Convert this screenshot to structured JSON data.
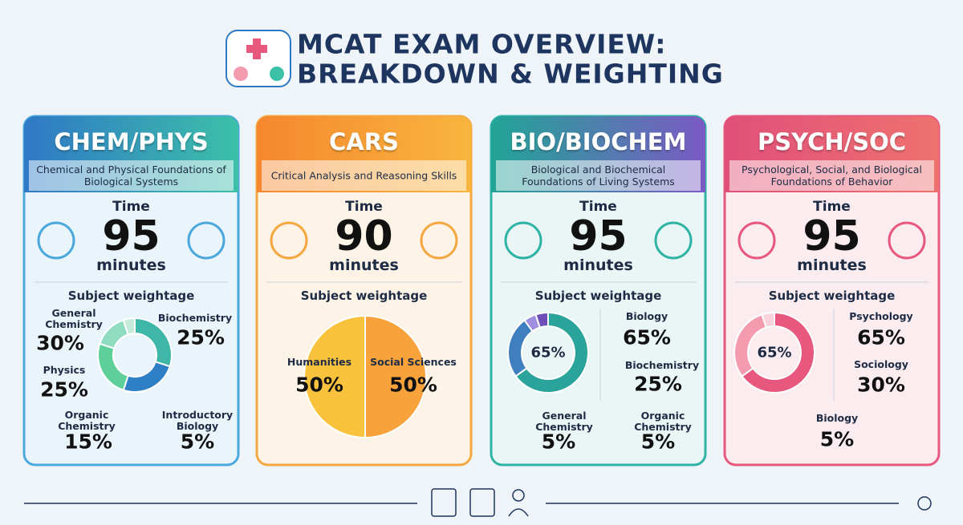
{
  "header": {
    "title_line1": "MCAT EXAM OVERVIEW:",
    "title_line2": "BREAKDOWN & WEIGHTING"
  },
  "cards": [
    {
      "title": "CHEM/PHYS",
      "subtitle": "Chemical and Physical Foundations of Biological Systems",
      "time_label": "Time",
      "time_value": 95,
      "time_unit": "minutes",
      "weightage_label": "Subject weightage",
      "subjects": [
        {
          "name": "General Chemistry",
          "value": 30,
          "value_label": "30%",
          "color": "#3fb7a8"
        },
        {
          "name": "Biochemistry",
          "value": 25,
          "value_label": "25%",
          "color": "#2f7fc6"
        },
        {
          "name": "Physics",
          "value": 25,
          "value_label": "25%",
          "color": "#5fcf9a"
        },
        {
          "name": "Organic Chemistry",
          "value": 15,
          "value_label": "15%",
          "color": "#8fdcc0"
        },
        {
          "name": "Introductory Biology",
          "value": 5,
          "value_label": "5%",
          "color": "#c4ecd9"
        }
      ]
    },
    {
      "title": "CARS",
      "subtitle": "Critical Analysis and Reasoning Skills",
      "time_label": "Time",
      "time_value": 90,
      "time_unit": "minutes",
      "weightage_label": "Subject weightage",
      "subjects": [
        {
          "name": "Humanities",
          "value": 50,
          "value_label": "50%",
          "color": "#f7a23b"
        },
        {
          "name": "Social Sciences",
          "value": 50,
          "value_label": "50%",
          "color": "#f9c23c"
        }
      ]
    },
    {
      "title": "BIO/BIOCHEM",
      "subtitle": "Biological and Biochemical Foundations of Living Systems",
      "time_label": "Time",
      "time_value": 95,
      "time_unit": "minutes",
      "weightage_label": "Subject weightage",
      "center_label": "65%",
      "subjects": [
        {
          "name": "Biology",
          "value": 65,
          "value_label": "65%",
          "color": "#2aa39b"
        },
        {
          "name": "Biochemistry",
          "value": 25,
          "value_label": "25%",
          "color": "#3f7fc0"
        },
        {
          "name": "General Chemistry",
          "value": 5,
          "value_label": "5%",
          "color": "#a08fe0"
        },
        {
          "name": "Organic Chemistry",
          "value": 5,
          "value_label": "5%",
          "color": "#6e4fb8"
        }
      ]
    },
    {
      "title": "PSYCH/SOC",
      "subtitle": "Psychological, Social, and Biological Foundations of Behavior",
      "time_label": "Time",
      "time_value": 95,
      "time_unit": "minutes",
      "weightage_label": "Subject weightage",
      "center_label": "65%",
      "subjects": [
        {
          "name": "Psychology",
          "value": 65,
          "value_label": "65%",
          "color": "#e8587e"
        },
        {
          "name": "Sociology",
          "value": 30,
          "value_label": "30%",
          "color": "#f49bb0"
        },
        {
          "name": "Biology",
          "value": 5,
          "value_label": "5%",
          "color": "#fbd3dc"
        }
      ]
    }
  ]
}
